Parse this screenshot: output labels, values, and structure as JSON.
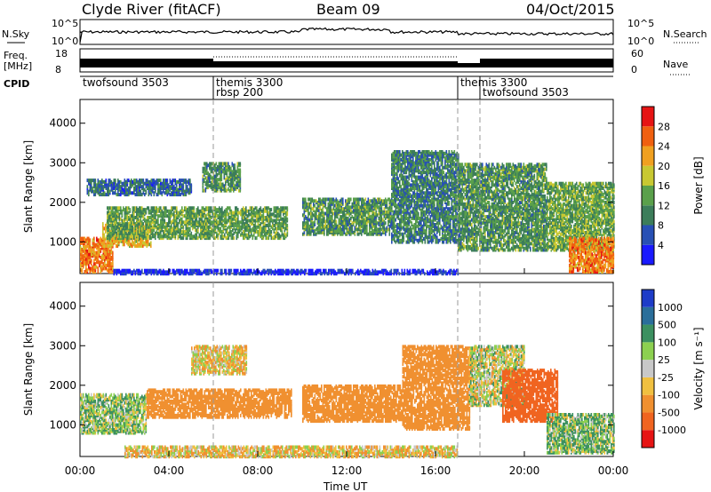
{
  "header": {
    "station": "Clyde River (fitACF)",
    "beam": "Beam 09",
    "date": "04/Oct/2015"
  },
  "status_panels": {
    "nsky_label": "N.Sky",
    "nsearch_label": "N.Search",
    "freq_label_top": "Freq.",
    "freq_label_unit": "[MHz]",
    "nave_label": "Nave",
    "cpid_label": "CPID",
    "nsky_ticks": [
      "10^5",
      "10^0"
    ],
    "nsearch_ticks": [
      "10^5",
      "10^0"
    ],
    "freq_ticks": [
      "18",
      "8"
    ],
    "nave_ticks": [
      "60",
      "0"
    ]
  },
  "cpid_segments": [
    {
      "start_hour": 0.0,
      "lines": [
        "twofsound 3503"
      ]
    },
    {
      "start_hour": 6.0,
      "lines": [
        "themis 3300",
        "rbsp 200"
      ]
    },
    {
      "start_hour": 17.0,
      "lines": [
        "themis 3300"
      ]
    },
    {
      "start_hour": 18.0,
      "lines": [
        "",
        "twofsound 3503"
      ]
    }
  ],
  "chart_data": [
    {
      "type": "heatmap",
      "name": "Power",
      "xlabel": "Time UT",
      "ylabel": "Slant Range [km]",
      "x_ticks": [
        "00:00",
        "04:00",
        "08:00",
        "12:00",
        "16:00",
        "20:00",
        "00:00"
      ],
      "x_tick_hours": [
        0,
        4,
        8,
        12,
        16,
        20,
        24
      ],
      "xlim_hours": [
        0,
        24
      ],
      "ylim_km": [
        200,
        4600
      ],
      "y_ticks": [
        1000,
        2000,
        3000,
        4000
      ],
      "colorbar": {
        "label": "Power [dB]",
        "ticks": [
          "4",
          "8",
          "12",
          "16",
          "20",
          "24",
          "28"
        ],
        "colors": [
          "#1a1aff",
          "#2850b4",
          "#3c7d5a",
          "#5aa04b",
          "#c8c832",
          "#f0a020",
          "#f06010",
          "#e61414"
        ]
      },
      "regions": [
        {
          "t0": 0.0,
          "t1": 1.5,
          "r0": 250,
          "r1": 1100,
          "value": 26
        },
        {
          "t0": 1.0,
          "t1": 3.2,
          "r0": 900,
          "r1": 1500,
          "value": 22
        },
        {
          "t0": 1.2,
          "t1": 9.3,
          "r0": 1100,
          "r1": 1900,
          "value": 15
        },
        {
          "t0": 5.5,
          "t1": 7.2,
          "r0": 2300,
          "r1": 3000,
          "value": 14
        },
        {
          "t0": 0.3,
          "t1": 5.0,
          "r0": 2200,
          "r1": 2600,
          "value": 10
        },
        {
          "t0": 10.0,
          "t1": 14.0,
          "r0": 1200,
          "r1": 2100,
          "value": 14
        },
        {
          "t0": 14.0,
          "t1": 17.0,
          "r0": 1000,
          "r1": 3300,
          "value": 12
        },
        {
          "t0": 17.0,
          "t1": 21.0,
          "r0": 800,
          "r1": 3000,
          "value": 14
        },
        {
          "t0": 21.0,
          "t1": 24.0,
          "r0": 800,
          "r1": 2500,
          "value": 16
        },
        {
          "t0": 22.0,
          "t1": 24.0,
          "r0": 250,
          "r1": 1100,
          "value": 26
        },
        {
          "t0": 1.5,
          "t1": 17.0,
          "r0": 200,
          "r1": 300,
          "value": 5
        }
      ]
    },
    {
      "type": "heatmap",
      "name": "Velocity",
      "xlabel": "Time UT",
      "ylabel": "Slant Range [km]",
      "x_ticks": [
        "00:00",
        "04:00",
        "08:00",
        "12:00",
        "16:00",
        "20:00",
        "00:00"
      ],
      "x_tick_hours": [
        0,
        4,
        8,
        12,
        16,
        20,
        24
      ],
      "xlim_hours": [
        0,
        24
      ],
      "ylim_km": [
        200,
        4600
      ],
      "y_ticks": [
        1000,
        2000,
        3000,
        4000
      ],
      "colorbar": {
        "label": "Velocity [m s⁻¹]",
        "ticks": [
          "1000",
          "500",
          "100",
          "25",
          "-25",
          "-100",
          "-500",
          "-1000"
        ],
        "colors": [
          "#1e3cc8",
          "#2a6e9a",
          "#3c9060",
          "#8cd050",
          "#c8c8c8",
          "#f0c040",
          "#f09030",
          "#f06420",
          "#e61414"
        ]
      },
      "regions": [
        {
          "t0": 0.0,
          "t1": 3.0,
          "r0": 800,
          "r1": 1800,
          "value": 60
        },
        {
          "t0": 3.0,
          "t1": 9.5,
          "r0": 1200,
          "r1": 1900,
          "value": -300
        },
        {
          "t0": 10.0,
          "t1": 14.5,
          "r0": 1100,
          "r1": 2000,
          "value": -300
        },
        {
          "t0": 14.5,
          "t1": 17.5,
          "r0": 900,
          "r1": 3000,
          "value": -300
        },
        {
          "t0": 17.5,
          "t1": 20.0,
          "r0": 1500,
          "r1": 3000,
          "value": 0
        },
        {
          "t0": 19.0,
          "t1": 21.5,
          "r0": 1100,
          "r1": 2400,
          "value": -700
        },
        {
          "t0": 21.0,
          "t1": 24.0,
          "r0": 300,
          "r1": 1300,
          "value": 80
        },
        {
          "t0": 5.0,
          "t1": 7.5,
          "r0": 2300,
          "r1": 3000,
          "value": -60
        },
        {
          "t0": 2.0,
          "t1": 17.0,
          "r0": 200,
          "r1": 450,
          "value": -60
        }
      ]
    }
  ]
}
